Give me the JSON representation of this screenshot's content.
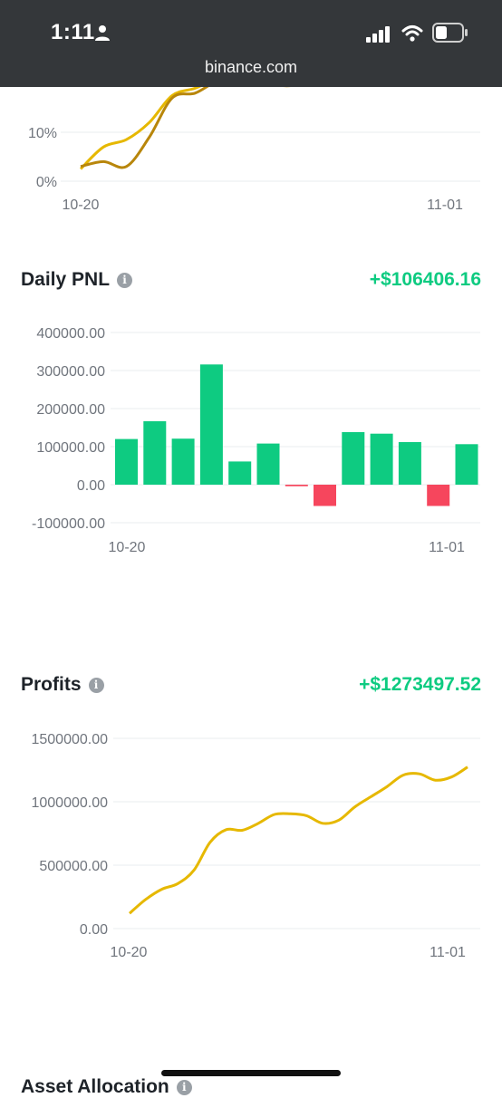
{
  "status": {
    "time": "1:11",
    "url": "binance.com"
  },
  "colors": {
    "status_bar": "#34373a",
    "positive": "#0ecb81",
    "negative": "#f6465d",
    "line_primary": "#e6b800",
    "line_secondary": "#b8860b"
  },
  "roi_chart": {
    "y_ticks": [
      "10%",
      "0%"
    ],
    "x_ticks": [
      "10-20",
      "11-01"
    ]
  },
  "daily_pnl": {
    "title": "Daily PNL",
    "value": "+$106406.16",
    "y_ticks": [
      "400000.00",
      "300000.00",
      "200000.00",
      "100000.00",
      "0.00",
      "-100000.00"
    ],
    "x_ticks": [
      "10-20",
      "11-01"
    ]
  },
  "profits": {
    "title": "Profits",
    "value": "+$1273497.52",
    "y_ticks": [
      "1500000.00",
      "1000000.00",
      "500000.00",
      "0.00"
    ],
    "x_ticks": [
      "10-20",
      "11-01"
    ]
  },
  "next_section": {
    "title": "Asset Allocation"
  },
  "chart_data": [
    {
      "type": "line",
      "title": "",
      "x_ticks": [
        "10-20",
        "11-01"
      ],
      "ylim_percent": [
        0,
        20
      ],
      "series": [
        {
          "values": [
            2.5,
            7,
            8.5,
            12,
            17.5,
            19,
            21,
            21.5,
            20.5,
            20.5,
            21,
            21,
            21.5
          ]
        },
        {
          "values": [
            3,
            4,
            3,
            9,
            17,
            18,
            20.5,
            21,
            20,
            19.5,
            20,
            20.5,
            21
          ]
        }
      ]
    },
    {
      "type": "bar",
      "title": "Daily PNL",
      "x_ticks": [
        "10-20",
        "11-01"
      ],
      "ylim": [
        -100000,
        400000
      ],
      "values": [
        120000,
        167000,
        121000,
        316000,
        61000,
        108000,
        -4000,
        -56000,
        138000,
        134000,
        112000,
        -56000,
        106406.16
      ]
    },
    {
      "type": "line",
      "title": "Profits",
      "x_ticks": [
        "10-20",
        "11-01"
      ],
      "ylim": [
        0,
        1500000
      ],
      "values": [
        120000,
        230000,
        310000,
        355000,
        460000,
        680000,
        780000,
        775000,
        830000,
        900000,
        905000,
        890000,
        830000,
        855000,
        960000,
        1040000,
        1120000,
        1210000,
        1220000,
        1170000,
        1195000,
        1273497.52
      ]
    }
  ]
}
